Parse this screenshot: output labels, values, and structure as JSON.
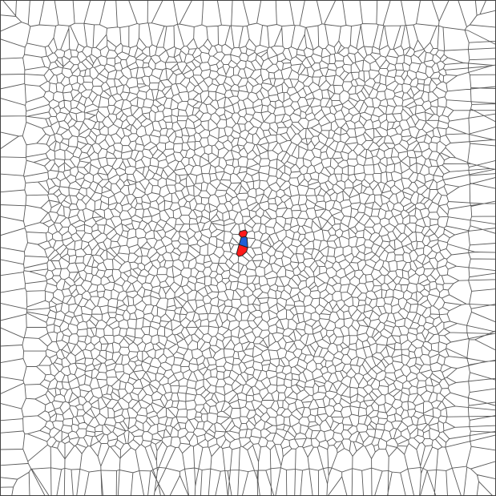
{
  "diagram": {
    "type": "voronoi-tessellation",
    "background_color": "#ffffff",
    "edge_color": "#5a5a5a",
    "highlight_colors": {
      "red": "#ff1a1a",
      "blue": "#1f5fd6"
    },
    "highlighted_cells": [
      {
        "color": "red"
      },
      {
        "color": "red"
      },
      {
        "color": "blue"
      }
    ]
  }
}
